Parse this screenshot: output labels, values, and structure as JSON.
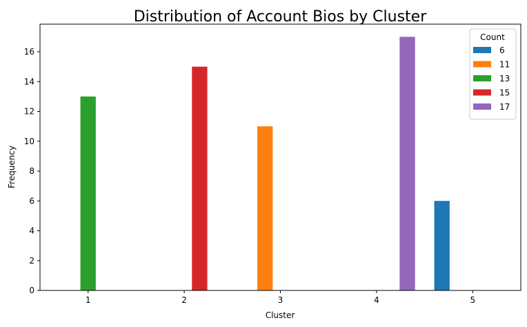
{
  "chart_data": {
    "type": "bar",
    "title": "Distribution of Account Bios by Cluster",
    "xlabel": "Cluster",
    "ylabel": "Frequency",
    "categories": [
      "1",
      "2",
      "3",
      "4",
      "5"
    ],
    "ylim": [
      0,
      17.85
    ],
    "yticks": [
      0,
      2,
      4,
      6,
      8,
      10,
      12,
      14,
      16
    ],
    "grid": false,
    "legend": {
      "title": "Count",
      "placement": "top-right"
    },
    "series": [
      {
        "name": "6",
        "color": "#1f77b4",
        "values": [
          0,
          0,
          0,
          0,
          6
        ]
      },
      {
        "name": "11",
        "color": "#ff7f0e",
        "values": [
          0,
          0,
          11,
          0,
          0
        ]
      },
      {
        "name": "13",
        "color": "#2ca02c",
        "values": [
          13,
          0,
          0,
          0,
          0
        ]
      },
      {
        "name": "15",
        "color": "#d62728",
        "values": [
          0,
          15,
          0,
          0,
          0
        ]
      },
      {
        "name": "17",
        "color": "#9467bd",
        "values": [
          0,
          0,
          0,
          17,
          0
        ]
      }
    ]
  }
}
